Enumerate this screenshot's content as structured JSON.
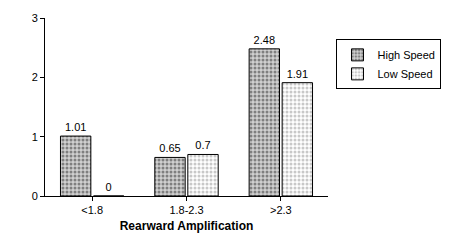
{
  "chart_data": {
    "type": "bar",
    "x_label": "Rearward Amplification",
    "categories": [
      "<1.8",
      "1.8-2.3",
      ">2.3"
    ],
    "series": [
      {
        "name": "High Speed",
        "color": "#7f7f7f",
        "values": [
          1.01,
          0.65,
          2.48
        ]
      },
      {
        "name": "Low Speed",
        "color": "#c8c8c8",
        "values": [
          0,
          0.7,
          1.91
        ]
      }
    ],
    "ylim": [
      0,
      3
    ],
    "yticks": [
      0,
      1,
      2,
      3
    ],
    "grid": false,
    "legend": "right",
    "data_labels": true
  }
}
